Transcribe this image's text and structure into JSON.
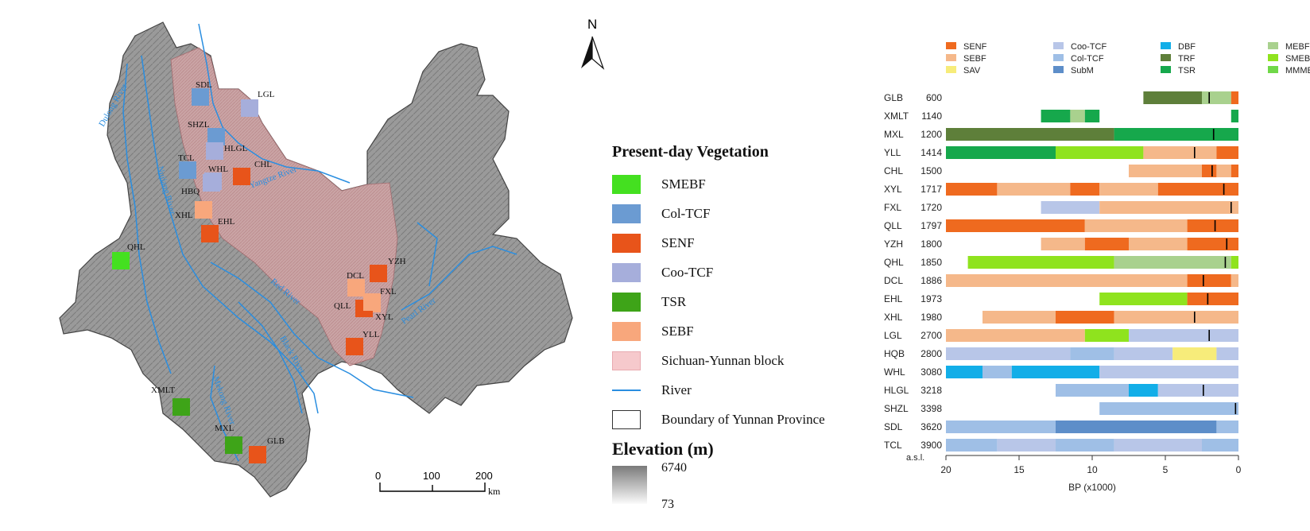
{
  "map": {
    "north": "N",
    "rivers": [
      "Jinsha River",
      "Yangtze River",
      "Red River",
      "Black River",
      "Mekong River",
      "Pearl River",
      "Nujiang River",
      "Dulong River"
    ],
    "sites": [
      {
        "code": "SDL",
        "veg": "Col-TCF"
      },
      {
        "code": "LGL",
        "veg": "Coo-TCF"
      },
      {
        "code": "SHZL",
        "veg": "Col-TCF"
      },
      {
        "code": "HLGL",
        "veg": "Coo-TCF"
      },
      {
        "code": "TCL",
        "veg": "Col-TCF"
      },
      {
        "code": "WHL",
        "veg": "Coo-TCF"
      },
      {
        "code": "CHL",
        "veg": "SENF"
      },
      {
        "code": "HBQ",
        "veg": "Coo-TCF"
      },
      {
        "code": "XHL",
        "veg": "SEBF"
      },
      {
        "code": "EHL",
        "veg": "SENF"
      },
      {
        "code": "QHL",
        "veg": "SMEBF"
      },
      {
        "code": "YZH",
        "veg": "SENF"
      },
      {
        "code": "DCL",
        "veg": "SEBF"
      },
      {
        "code": "FXL",
        "veg": "SEBF"
      },
      {
        "code": "QLL",
        "veg": "SENF"
      },
      {
        "code": "XYL",
        "veg": "SEBF"
      },
      {
        "code": "YLL",
        "veg": "SENF"
      },
      {
        "code": "XMLT",
        "veg": "TSR"
      },
      {
        "code": "MXL",
        "veg": "TSR"
      },
      {
        "code": "GLB",
        "veg": "SENF"
      }
    ],
    "scale": {
      "ticks": [
        "0",
        "100",
        "200"
      ],
      "unit": "km"
    }
  },
  "legend": {
    "title": "Present-day Vegetation",
    "items": [
      {
        "label": "SMEBF",
        "color": "#44e020"
      },
      {
        "label": "Col-TCF",
        "color": "#6b9bd2"
      },
      {
        "label": "SENF",
        "color": "#e8541a"
      },
      {
        "label": "Coo-TCF",
        "color": "#a6aedb"
      },
      {
        "label": "TSR",
        "color": "#3ea418"
      },
      {
        "label": "SEBF",
        "color": "#f8a77c"
      },
      {
        "label": "Sichuan-Yunnan block",
        "color": "#f6c9cc"
      },
      {
        "label": "River",
        "color": "#2a8ee0"
      },
      {
        "label": "Boundary of Yunnan Province",
        "color": "#ffffff"
      }
    ],
    "elevation_title": "Elevation (m)",
    "elev_max": "6740",
    "elev_min": "73"
  },
  "chart_legend": [
    {
      "label": "SENF",
      "color": "#ef6a1f"
    },
    {
      "label": "SEBF",
      "color": "#f5b88a"
    },
    {
      "label": "SAV",
      "color": "#f7ec7a"
    },
    {
      "label": "Coo-TCF",
      "color": "#b8c6e8"
    },
    {
      "label": "Col-TCF",
      "color": "#9fbfe6"
    },
    {
      "label": "SubM",
      "color": "#5d8ec9"
    },
    {
      "label": "DBF",
      "color": "#12aee8"
    },
    {
      "label": "TRF",
      "color": "#5e7f3a"
    },
    {
      "label": "TSR",
      "color": "#16a84c"
    },
    {
      "label": "MEBF",
      "color": "#a9d18e"
    },
    {
      "label": "SMEBF",
      "color": "#8fe31e"
    },
    {
      "label": "MMMEBF",
      "color": "#70d848"
    }
  ],
  "chart_data": {
    "type": "bar",
    "orientation": "horizontal-stacked-timeline",
    "xlabel": "BP (x1000)",
    "xlim": [
      20,
      0
    ],
    "xticks": [
      "20",
      "15",
      "10",
      "5",
      "0"
    ],
    "elevation_label": "a.s.l.",
    "sites": [
      {
        "name": "GLB",
        "elev": "600",
        "start": 6.5,
        "marker": 2,
        "segments": [
          [
            6.5,
            2.5,
            "TRF"
          ],
          [
            2.5,
            0.5,
            "MEBF"
          ],
          [
            0.5,
            0,
            "SENF"
          ]
        ]
      },
      {
        "name": "XMLT",
        "elev": "1140",
        "start": 13.5,
        "marker": null,
        "segments": [
          [
            13.5,
            11.5,
            "TSR"
          ],
          [
            11.5,
            10.5,
            "MEBF"
          ],
          [
            10.5,
            9.5,
            "TSR"
          ],
          [
            0.5,
            0,
            "TSR"
          ]
        ]
      },
      {
        "name": "MXL",
        "elev": "1200",
        "start": 20,
        "marker": 1.7,
        "segments": [
          [
            20,
            8.5,
            "TRF"
          ],
          [
            8.5,
            0,
            "TSR"
          ]
        ]
      },
      {
        "name": "YLL",
        "elev": "1414",
        "start": 20,
        "marker": 3,
        "segments": [
          [
            20,
            12.5,
            "TSR"
          ],
          [
            12.5,
            6.5,
            "SMEBF"
          ],
          [
            6.5,
            1.5,
            "SEBF"
          ],
          [
            1.5,
            0,
            "SENF"
          ]
        ]
      },
      {
        "name": "CHL",
        "elev": "1500",
        "start": 7.5,
        "marker": 1.8,
        "segments": [
          [
            7.5,
            2.5,
            "SEBF"
          ],
          [
            2.5,
            1.5,
            "SENF"
          ],
          [
            1.5,
            0.5,
            "SEBF"
          ],
          [
            0.5,
            0,
            "SENF"
          ]
        ]
      },
      {
        "name": "XYL",
        "elev": "1717",
        "start": 20,
        "marker": 1,
        "segments": [
          [
            20,
            16.5,
            "SENF"
          ],
          [
            16.5,
            11.5,
            "SEBF"
          ],
          [
            11.5,
            9.5,
            "SENF"
          ],
          [
            9.5,
            5.5,
            "SEBF"
          ],
          [
            5.5,
            0,
            "SENF"
          ]
        ]
      },
      {
        "name": "FXL",
        "elev": "1720",
        "start": 13.5,
        "marker": 0.5,
        "segments": [
          [
            13.5,
            9.5,
            "Coo-TCF"
          ],
          [
            9.5,
            0,
            "SEBF"
          ]
        ]
      },
      {
        "name": "QLL",
        "elev": "1797",
        "start": 20,
        "marker": 1.6,
        "segments": [
          [
            20,
            10.5,
            "SENF"
          ],
          [
            10.5,
            3.5,
            "SEBF"
          ],
          [
            3.5,
            0,
            "SENF"
          ]
        ]
      },
      {
        "name": "YZH",
        "elev": "1800",
        "start": 13.5,
        "marker": 0.8,
        "segments": [
          [
            13.5,
            10.5,
            "SEBF"
          ],
          [
            10.5,
            7.5,
            "SENF"
          ],
          [
            7.5,
            3.5,
            "SEBF"
          ],
          [
            3.5,
            0,
            "SENF"
          ]
        ]
      },
      {
        "name": "QHL",
        "elev": "1850",
        "start": 18.5,
        "marker": 0.9,
        "segments": [
          [
            18.5,
            8.5,
            "SMEBF"
          ],
          [
            8.5,
            0.5,
            "MEBF"
          ],
          [
            0.5,
            0,
            "SMEBF"
          ]
        ]
      },
      {
        "name": "DCL",
        "elev": "1886",
        "start": 20,
        "marker": 2.4,
        "segments": [
          [
            20,
            3.5,
            "SEBF"
          ],
          [
            3.5,
            0.5,
            "SENF"
          ],
          [
            0.5,
            0,
            "SEBF"
          ]
        ]
      },
      {
        "name": "EHL",
        "elev": "1973",
        "start": 9.5,
        "marker": 2.1,
        "segments": [
          [
            9.5,
            3.5,
            "SMEBF"
          ],
          [
            3.5,
            0,
            "SENF"
          ]
        ]
      },
      {
        "name": "XHL",
        "elev": "1980",
        "start": 17.5,
        "marker": 3,
        "segments": [
          [
            17.5,
            12.5,
            "SEBF"
          ],
          [
            12.5,
            8.5,
            "SENF"
          ],
          [
            8.5,
            0,
            "SEBF"
          ]
        ]
      },
      {
        "name": "LGL",
        "elev": "2700",
        "start": 20,
        "marker": 2,
        "segments": [
          [
            20,
            10.5,
            "SEBF"
          ],
          [
            10.5,
            7.5,
            "SMEBF"
          ],
          [
            7.5,
            0,
            "Coo-TCF"
          ]
        ]
      },
      {
        "name": "HQB",
        "elev": "2800",
        "start": 20,
        "marker": null,
        "segments": [
          [
            20,
            11.5,
            "Coo-TCF"
          ],
          [
            11.5,
            8.5,
            "Col-TCF"
          ],
          [
            8.5,
            4.5,
            "Coo-TCF"
          ],
          [
            4.5,
            1.5,
            "SAV"
          ],
          [
            1.5,
            0,
            "Coo-TCF"
          ]
        ]
      },
      {
        "name": "WHL",
        "elev": "3080",
        "start": 20,
        "marker": null,
        "segments": [
          [
            20,
            17.5,
            "DBF"
          ],
          [
            17.5,
            15.5,
            "Col-TCF"
          ],
          [
            15.5,
            9.5,
            "DBF"
          ],
          [
            9.5,
            0,
            "Coo-TCF"
          ]
        ]
      },
      {
        "name": "HLGL",
        "elev": "3218",
        "start": 12.5,
        "marker": 2.4,
        "segments": [
          [
            12.5,
            7.5,
            "Col-TCF"
          ],
          [
            7.5,
            5.5,
            "DBF"
          ],
          [
            5.5,
            0,
            "Coo-TCF"
          ]
        ]
      },
      {
        "name": "SHZL",
        "elev": "3398",
        "start": 9.5,
        "marker": 0.2,
        "segments": [
          [
            9.5,
            0,
            "Col-TCF"
          ]
        ]
      },
      {
        "name": "SDL",
        "elev": "3620",
        "start": 20,
        "marker": null,
        "segments": [
          [
            20,
            12.5,
            "Col-TCF"
          ],
          [
            12.5,
            1.5,
            "SubM"
          ],
          [
            1.5,
            0,
            "Col-TCF"
          ]
        ]
      },
      {
        "name": "TCL",
        "elev": "3900",
        "start": 20,
        "marker": null,
        "segments": [
          [
            20,
            16.5,
            "Col-TCF"
          ],
          [
            16.5,
            12.5,
            "Coo-TCF"
          ],
          [
            12.5,
            8.5,
            "Col-TCF"
          ],
          [
            8.5,
            2.5,
            "Coo-TCF"
          ],
          [
            2.5,
            0,
            "Col-TCF"
          ]
        ]
      }
    ]
  }
}
